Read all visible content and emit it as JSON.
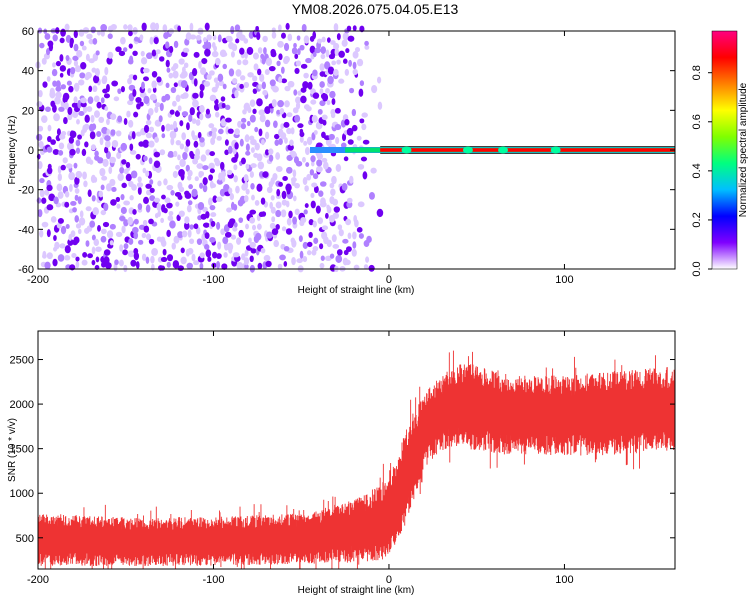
{
  "title": "YM08.2026.075.04.05.E13",
  "chart_data": [
    {
      "type": "heatmap",
      "xlabel": "Height of straight line (km)",
      "ylabel": "Frequency (Hz)",
      "xlim": [
        -200,
        163
      ],
      "ylim": [
        -60,
        60
      ],
      "x_ticks": [
        "-200",
        "-100",
        "0",
        "100"
      ],
      "x_tick_values": [
        -200,
        -100,
        0,
        100
      ],
      "y_ticks": [
        "60",
        "40",
        "20",
        "0",
        "-20",
        "-40",
        "-60"
      ],
      "y_tick_values": [
        60,
        40,
        20,
        0,
        -20,
        -40,
        -60
      ],
      "colorbar": {
        "label": "Normalized spectral amplitude",
        "ticks": [
          "0.0",
          "0.2",
          "0.4",
          "0.6",
          "0.8"
        ],
        "tick_values": [
          0.0,
          0.2,
          0.4,
          0.6,
          0.8
        ],
        "range": [
          0,
          0.97
        ],
        "colors": [
          "#ffffff",
          "#7f00ff",
          "#0000ff",
          "#00bfff",
          "#00ff80",
          "#80ff00",
          "#ffff00",
          "#ff8000",
          "#ff0000",
          "#ff0080"
        ]
      },
      "noise_region_x": [
        -200,
        -5
      ],
      "noise_amplitude_range": [
        0.0,
        0.2
      ],
      "tone_frequency": 0,
      "tone_start_x": -45,
      "tone_amplitude": 0.9
    },
    {
      "type": "area",
      "xlabel": "Height of straight line (km)",
      "ylabel": "SNR (10 * v/v)",
      "xlim": [
        -200,
        163
      ],
      "ylim": [
        150,
        2820
      ],
      "x_ticks": [
        "-200",
        "-100",
        "0",
        "100"
      ],
      "x_tick_values": [
        -200,
        -100,
        0,
        100
      ],
      "y_ticks": [
        "2500",
        "2000",
        "1500",
        "1000",
        "500"
      ],
      "y_tick_values": [
        2500,
        2000,
        1500,
        1000,
        500
      ],
      "series_color": "#ee3333",
      "envelope": {
        "x": [
          -200,
          -150,
          -100,
          -50,
          -30,
          -15,
          0,
          10,
          20,
          30,
          40,
          50,
          70,
          100,
          130,
          163
        ],
        "upper": [
          750,
          720,
          720,
          760,
          850,
          950,
          1150,
          1700,
          2100,
          2300,
          2450,
          2450,
          2300,
          2300,
          2350,
          2400
        ],
        "lower": [
          200,
          190,
          200,
          220,
          230,
          250,
          280,
          700,
          1300,
          1500,
          1550,
          1500,
          1450,
          1450,
          1450,
          1500
        ]
      }
    }
  ]
}
